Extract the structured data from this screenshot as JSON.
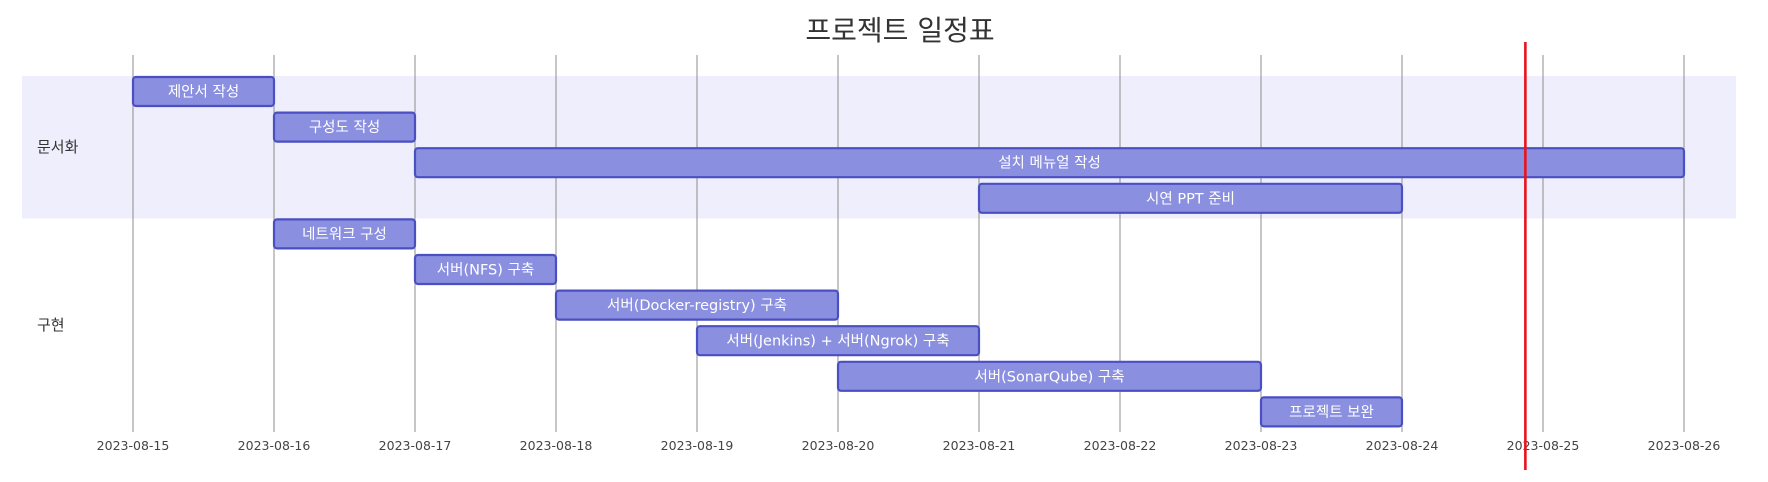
{
  "chart_data": {
    "type": "gantt",
    "title": "프로젝트 일정표",
    "date_ticks": [
      "2023-08-15",
      "2023-08-16",
      "2023-08-17",
      "2023-08-18",
      "2023-08-19",
      "2023-08-20",
      "2023-08-21",
      "2023-08-22",
      "2023-08-23",
      "2023-08-24",
      "2023-08-25",
      "2023-08-26"
    ],
    "today": "2023-08-24T21:00",
    "grid": true,
    "sections": [
      {
        "name": "문서화",
        "tasks": [
          {
            "label": "제안서 작성",
            "start": "2023-08-15",
            "end": "2023-08-16"
          },
          {
            "label": "구성도 작성",
            "start": "2023-08-16",
            "end": "2023-08-17"
          },
          {
            "label": "설치 메뉴얼 작성",
            "start": "2023-08-17",
            "end": "2023-08-26"
          },
          {
            "label": "시연 PPT 준비",
            "start": "2023-08-21",
            "end": "2023-08-24"
          }
        ]
      },
      {
        "name": "구현",
        "tasks": [
          {
            "label": "네트워크 구성",
            "start": "2023-08-16",
            "end": "2023-08-17"
          },
          {
            "label": "서버(NFS) 구축",
            "start": "2023-08-17",
            "end": "2023-08-18"
          },
          {
            "label": "서버(Docker-registry) 구축",
            "start": "2023-08-18",
            "end": "2023-08-20"
          },
          {
            "label": "서버(Jenkins) + 서버(Ngrok) 구축",
            "start": "2023-08-19",
            "end": "2023-08-21"
          },
          {
            "label": "서버(SonarQube) 구축",
            "start": "2023-08-20",
            "end": "2023-08-23"
          },
          {
            "label": "프로젝트 보완",
            "start": "2023-08-23",
            "end": "2023-08-24"
          }
        ]
      }
    ]
  },
  "colors": {
    "task_fill": "#8a8fe0",
    "task_stroke": "#4a4fc2",
    "section_band_fill": "#eeeefc",
    "today_line": "#e8131c",
    "grid": "#8c8c8c"
  }
}
